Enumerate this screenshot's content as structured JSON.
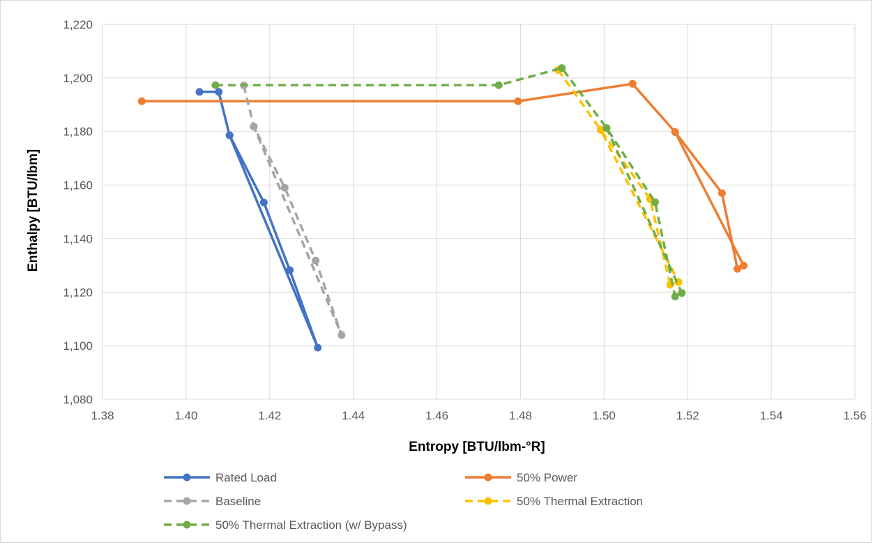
{
  "chart_data": {
    "type": "line",
    "xlabel": "Entropy [BTU/lbm-°R]",
    "ylabel": "Enthalpy [BTU/lbm]",
    "xlim": [
      1.38,
      1.56
    ],
    "ylim": [
      1080,
      1220
    ],
    "x_ticks": [
      "1.38",
      "1.40",
      "1.42",
      "1.44",
      "1.46",
      "1.48",
      "1.50",
      "1.52",
      "1.54",
      "1.56"
    ],
    "y_ticks": [
      "1,080",
      "1,100",
      "1,120",
      "1,140",
      "1,160",
      "1,180",
      "1,200",
      "1,220"
    ],
    "grid": "vertical and horizontal major gridlines",
    "legend_position": "bottom",
    "series": [
      {
        "name": "Rated Load",
        "color": "#4472c4",
        "dashed": false,
        "points": [
          [
            1.4032,
            1194.8
          ],
          [
            1.4078,
            1194.8
          ],
          [
            1.4104,
            1178.6
          ],
          [
            1.4186,
            1153.5
          ],
          [
            1.4248,
            1128.2
          ],
          [
            1.4315,
            1099.3
          ],
          [
            1.4104,
            1178.6
          ]
        ]
      },
      {
        "name": "50% Power",
        "color": "#ed7d31",
        "dashed": false,
        "points": [
          [
            1.3894,
            1191.3
          ],
          [
            1.4794,
            1191.3
          ],
          [
            1.5068,
            1197.8
          ],
          [
            1.517,
            1179.8
          ],
          [
            1.5282,
            1157.0
          ],
          [
            1.5319,
            1128.7
          ],
          [
            1.5334,
            1129.9
          ],
          [
            1.517,
            1179.8
          ]
        ]
      },
      {
        "name": "Baseline",
        "color": "#a5a5a5",
        "dashed": true,
        "points": [
          [
            1.4138,
            1197.2
          ],
          [
            1.4162,
            1181.8
          ],
          [
            1.4236,
            1159.0
          ],
          [
            1.431,
            1131.8
          ],
          [
            1.4372,
            1104.0
          ],
          [
            1.4162,
            1181.8
          ]
        ]
      },
      {
        "name": "50% Thermal Extraction",
        "color": "#ffc000",
        "dashed": true,
        "points": [
          [
            1.489,
            1203.0
          ],
          [
            1.4992,
            1180.6
          ],
          [
            1.511,
            1154.8
          ],
          [
            1.5158,
            1122.8
          ],
          [
            1.5178,
            1123.8
          ],
          [
            1.4992,
            1180.6
          ]
        ]
      },
      {
        "name": "50% Thermal Extraction (w/ Bypass)",
        "color": "#70ad47",
        "dashed": true,
        "points": [
          [
            1.407,
            1197.3
          ],
          [
            1.4748,
            1197.3
          ],
          [
            1.4899,
            1203.7
          ],
          [
            1.5006,
            1181.3
          ],
          [
            1.5122,
            1153.6
          ],
          [
            1.517,
            1118.4
          ],
          [
            1.5186,
            1119.7
          ],
          [
            1.5006,
            1181.3
          ]
        ]
      }
    ]
  }
}
